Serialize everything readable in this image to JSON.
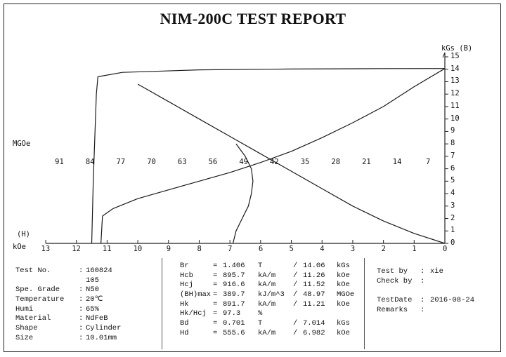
{
  "title": "NIM-200C TEST REPORT",
  "chart_data": {
    "type": "line",
    "y_axis": {
      "label": "kGs (B)",
      "ticks": [
        "15",
        "14",
        "13",
        "12",
        "11",
        "10",
        "9",
        "8",
        "7",
        "6",
        "5",
        "4",
        "3",
        "2",
        "1",
        "0"
      ],
      "range": [
        0,
        15
      ]
    },
    "x_axis": {
      "label": "kOe",
      "label_extra": "(H)",
      "ticks": [
        "13",
        "12",
        "11",
        "10",
        "9",
        "8",
        "7",
        "6",
        "5",
        "4",
        "3",
        "2",
        "1",
        "0"
      ],
      "range": [
        13,
        0
      ]
    },
    "energy_axis": {
      "label": "MGOe",
      "ticks": [
        "91",
        "84",
        "77",
        "70",
        "63",
        "56",
        "49",
        "42",
        "35",
        "28",
        "21",
        "14",
        "7"
      ]
    },
    "series": [
      {
        "points": [
          [
            11.5,
            0
          ],
          [
            11.45,
            5
          ],
          [
            11.35,
            12
          ],
          [
            11.3,
            13.4
          ],
          [
            10.5,
            13.75
          ],
          [
            8,
            13.95
          ],
          [
            5,
            14.02
          ],
          [
            2,
            14.05
          ],
          [
            0,
            14.06
          ]
        ]
      },
      {
        "points": [
          [
            11.2,
            0
          ],
          [
            11.15,
            2.2
          ],
          [
            10.8,
            2.8
          ],
          [
            10,
            3.6
          ],
          [
            9,
            4.3
          ],
          [
            8,
            5.0
          ],
          [
            7,
            5.7
          ],
          [
            6,
            6.5
          ],
          [
            5,
            7.4
          ],
          [
            4,
            8.5
          ],
          [
            3,
            9.7
          ],
          [
            2,
            11.0
          ],
          [
            1,
            12.6
          ],
          [
            0,
            14.06
          ]
        ]
      },
      {
        "points": [
          [
            6.9,
            0
          ],
          [
            6.8,
            1
          ],
          [
            6.6,
            2
          ],
          [
            6.4,
            3
          ],
          [
            6.3,
            4
          ],
          [
            6.25,
            5
          ],
          [
            6.3,
            6
          ],
          [
            6.5,
            7
          ],
          [
            6.8,
            8
          ]
        ]
      },
      {
        "points": [
          [
            0,
            0
          ],
          [
            1,
            0.8
          ],
          [
            2,
            1.8
          ],
          [
            3,
            3.0
          ],
          [
            4,
            4.4
          ],
          [
            5,
            5.8
          ],
          [
            6,
            7.2
          ],
          [
            7,
            8.6
          ],
          [
            8,
            10.0
          ],
          [
            9,
            11.4
          ],
          [
            10,
            12.8
          ]
        ]
      }
    ]
  },
  "info": {
    "left": [
      {
        "label": "Test No.",
        "sep": ":",
        "value": "160824"
      },
      {
        "label": "",
        "sep": "",
        "value": "105"
      },
      {
        "label": "Spe. Grade",
        "sep": ":",
        "value": "N50"
      },
      {
        "label": "Temperature",
        "sep": ":",
        "value": "20℃"
      },
      {
        "label": "Humi",
        "sep": ":",
        "value": "65%"
      },
      {
        "label": "Material",
        "sep": ":",
        "value": "NdFeB"
      },
      {
        "label": "Shape",
        "sep": ":",
        "value": "Cylinder"
      },
      {
        "label": "Size",
        "sep": ":",
        "value": "10.01mm"
      }
    ],
    "middle": [
      {
        "name": "Br",
        "eq": "=",
        "v1": "1.406",
        "u1": "T",
        "sep": "/",
        "v2": "14.06",
        "u2": "kGs"
      },
      {
        "name": "Hcb",
        "eq": "=",
        "v1": "895.7",
        "u1": "kA/m",
        "sep": "/",
        "v2": "11.26",
        "u2": "kOe"
      },
      {
        "name": "Hcj",
        "eq": "=",
        "v1": "916.6",
        "u1": "kA/m",
        "sep": "/",
        "v2": "11.52",
        "u2": "kOe"
      },
      {
        "name": "(BH)max",
        "eq": "=",
        "v1": "389.7",
        "u1": "kJ/m^3",
        "sep": "/",
        "v2": "48.97",
        "u2": "MGOe"
      },
      {
        "name": "Hk",
        "eq": "=",
        "v1": "891.7",
        "u1": "kA/m",
        "sep": "/",
        "v2": "11.21",
        "u2": "kOe"
      },
      {
        "name": "Hk/Hcj",
        "eq": "=",
        "v1": "97.3",
        "u1": "%",
        "sep": "",
        "v2": "",
        "u2": ""
      },
      {
        "name": "Bd",
        "eq": "=",
        "v1": "0.701",
        "u1": "T",
        "sep": "/",
        "v2": "7.014",
        "u2": "kGs"
      },
      {
        "name": "Hd",
        "eq": "=",
        "v1": "555.6",
        "u1": "kA/m",
        "sep": "/",
        "v2": "6.982",
        "u2": "kOe"
      }
    ],
    "right": [
      {
        "label": "Test by",
        "sep": ":",
        "value": "xie"
      },
      {
        "label": "Check by",
        "sep": ":",
        "value": ""
      },
      {
        "label": "",
        "sep": "",
        "value": ""
      },
      {
        "label": "TestDate",
        "sep": ":",
        "value": "2016-08-24"
      },
      {
        "label": "Remarks",
        "sep": ":",
        "value": ""
      }
    ]
  }
}
